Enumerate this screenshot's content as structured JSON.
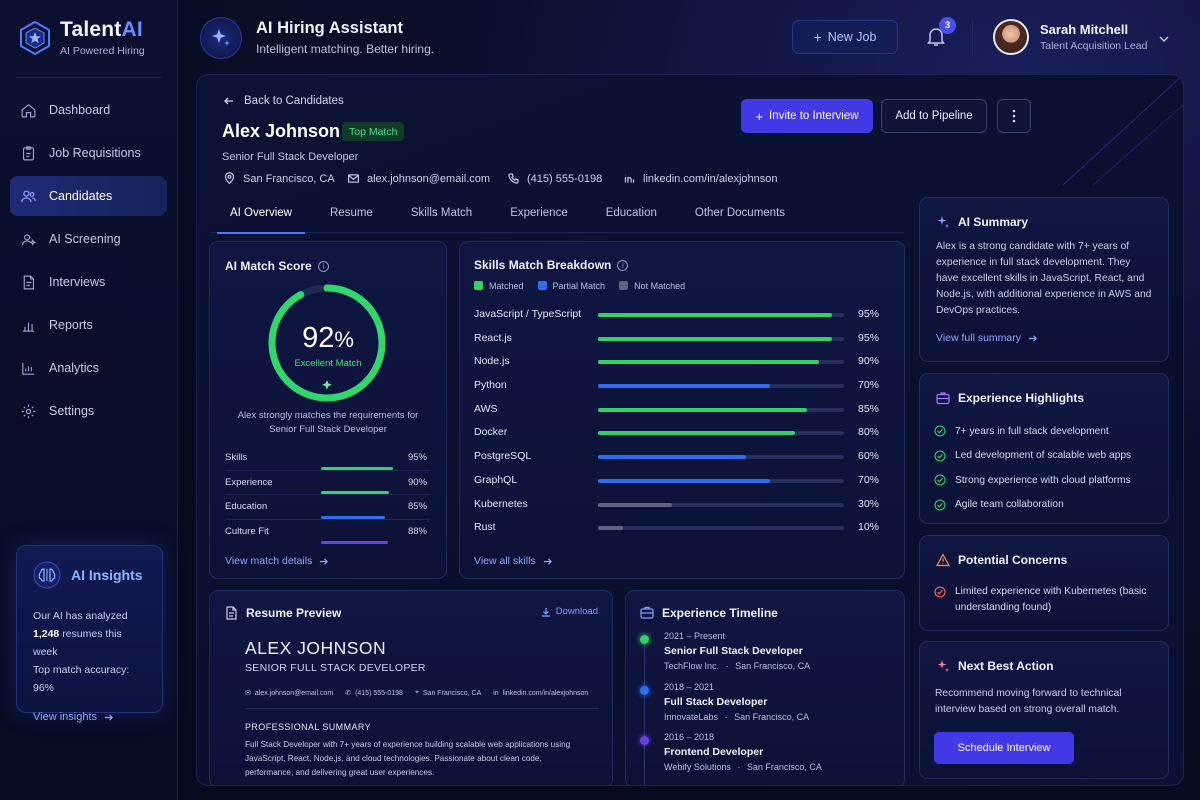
{
  "brand": {
    "name_main": "Talent",
    "name_accent": "AI",
    "subtitle": "AI Powered Hiring"
  },
  "nav": [
    {
      "label": "Dashboard",
      "icon": "home-icon",
      "active": false
    },
    {
      "label": "Job Requisitions",
      "icon": "clipboard-icon",
      "active": false
    },
    {
      "label": "Candidates",
      "icon": "users-icon",
      "active": true
    },
    {
      "label": "AI Screening",
      "icon": "sparkle-person-icon",
      "active": false
    },
    {
      "label": "Interviews",
      "icon": "document-icon",
      "active": false
    },
    {
      "label": "Reports",
      "icon": "bar-chart-icon",
      "active": false
    },
    {
      "label": "Analytics",
      "icon": "analytics-icon",
      "active": false
    },
    {
      "label": "Settings",
      "icon": "gear-icon",
      "active": false
    }
  ],
  "insights": {
    "title": "AI Insights",
    "line1": "Our AI has analyzed",
    "line2_count": "1,248",
    "line2_rest": " resumes this week",
    "line3": "Top match accuracy: 96%",
    "link": "View insights"
  },
  "header": {
    "title": "AI Hiring Assistant",
    "subtitle": "Intelligent matching. Better hiring.",
    "new_job": "New Job",
    "notification_count": "3",
    "user_name": "Sarah Mitchell",
    "user_role": "Talent Acquisition Lead"
  },
  "candidate": {
    "back": "Back to Candidates",
    "name": "Alex Johnson",
    "badge": "Top Match",
    "title": "Senior Full Stack Developer",
    "location": "San Francisco, CA",
    "email": "alex.johnson@email.com",
    "phone": "(415) 555-0198",
    "linkedin": "linkedin.com/in/alexjohnson",
    "invite": "Invite to Interview",
    "pipeline": "Add to Pipeline"
  },
  "tabs": [
    "AI Overview",
    "Resume",
    "Skills Match",
    "Experience",
    "Education",
    "Other Documents"
  ],
  "match": {
    "title": "AI Match Score",
    "score": "92",
    "score_fraction": 0.92,
    "label": "Excellent Match",
    "desc": "Alex strongly matches the requirements for Senior Full Stack Developer",
    "rows": [
      {
        "label": "Skills",
        "value": "95%",
        "fraction": 0.95,
        "color": "#34d06a"
      },
      {
        "label": "Experience",
        "value": "90%",
        "fraction": 0.9,
        "color": "#34d06a"
      },
      {
        "label": "Education",
        "value": "85%",
        "fraction": 0.85,
        "color": "#2f6cf0"
      },
      {
        "label": "Culture Fit",
        "value": "88%",
        "fraction": 0.88,
        "color": "#6a40e8"
      }
    ],
    "link": "View match details"
  },
  "skills": {
    "title": "Skills Match Breakdown",
    "legend": [
      {
        "label": "Matched",
        "color": "#34d06a"
      },
      {
        "label": "Partial Match",
        "color": "#2f6cf0"
      },
      {
        "label": "Not Matched",
        "color": "#5d6482"
      }
    ],
    "rows": [
      {
        "label": "JavaScript / TypeScript",
        "value": "95%",
        "fraction": 0.95,
        "color": "#34d06a"
      },
      {
        "label": "React.js",
        "value": "95%",
        "fraction": 0.95,
        "color": "#34d06a"
      },
      {
        "label": "Node.js",
        "value": "90%",
        "fraction": 0.9,
        "color": "#34d06a"
      },
      {
        "label": "Python",
        "value": "70%",
        "fraction": 0.7,
        "color": "#2f6cf0"
      },
      {
        "label": "AWS",
        "value": "85%",
        "fraction": 0.85,
        "color": "#34d06a"
      },
      {
        "label": "Docker",
        "value": "80%",
        "fraction": 0.8,
        "color": "#34d06a"
      },
      {
        "label": "PostgreSQL",
        "value": "60%",
        "fraction": 0.6,
        "color": "#2f6cf0"
      },
      {
        "label": "GraphQL",
        "value": "70%",
        "fraction": 0.7,
        "color": "#2f6cf0"
      },
      {
        "label": "Kubernetes",
        "value": "30%",
        "fraction": 0.3,
        "color": "#5d6482"
      },
      {
        "label": "Rust",
        "value": "10%",
        "fraction": 0.1,
        "color": "#5d6482"
      }
    ],
    "link": "View all skills"
  },
  "resume": {
    "title": "Resume Preview",
    "download": "Download",
    "name": "ALEX JOHNSON",
    "role": "SENIOR FULL STACK DEVELOPER",
    "email": "alex.johnson@email.com",
    "phone": "(415) 555-0198",
    "location": "San Francisco, CA",
    "linkedin": "linkedin.com/in/alexjohnson",
    "summary_heading": "PROFESSIONAL SUMMARY",
    "summary": "Full Stack Developer with 7+ years of experience building scalable web applications using JavaScript, React, Node.js, and cloud technologies. Passionate about clean code, performance, and delivering great user experiences."
  },
  "timeline": {
    "title": "Experience Timeline",
    "items": [
      {
        "date": "2021 – Present",
        "role": "Senior Full Stack Developer",
        "company": "TechFlow Inc.",
        "location": "San Francisco, CA",
        "color": "#34d06a"
      },
      {
        "date": "2018 – 2021",
        "role": "Full Stack Developer",
        "company": "InnovateLabs",
        "location": "San Francisco, CA",
        "color": "#2f6cf0"
      },
      {
        "date": "2016 – 2018",
        "role": "Frontend Developer",
        "company": "Webify Solutions",
        "location": "San Francisco, CA",
        "color": "#6a40e8"
      }
    ]
  },
  "summary": {
    "title": "AI Summary",
    "text": "Alex is a strong candidate with 7+ years of experience in full stack development. They have excellent skills in JavaScript, React, and Node.js, with additional experience in AWS and DevOps practices.",
    "link": "View full summary"
  },
  "highlights": {
    "title": "Experience Highlights",
    "items": [
      "7+ years in full stack development",
      "Led development of scalable web apps",
      "Strong experience with cloud platforms",
      "Agile team collaboration"
    ]
  },
  "concerns": {
    "title": "Potential Concerns",
    "item": "Limited experience with Kubernetes (basic understanding found)"
  },
  "next_action": {
    "title": "Next Best Action",
    "text": "Recommend moving forward to technical interview based on strong overall match.",
    "button": "Schedule Interview"
  }
}
